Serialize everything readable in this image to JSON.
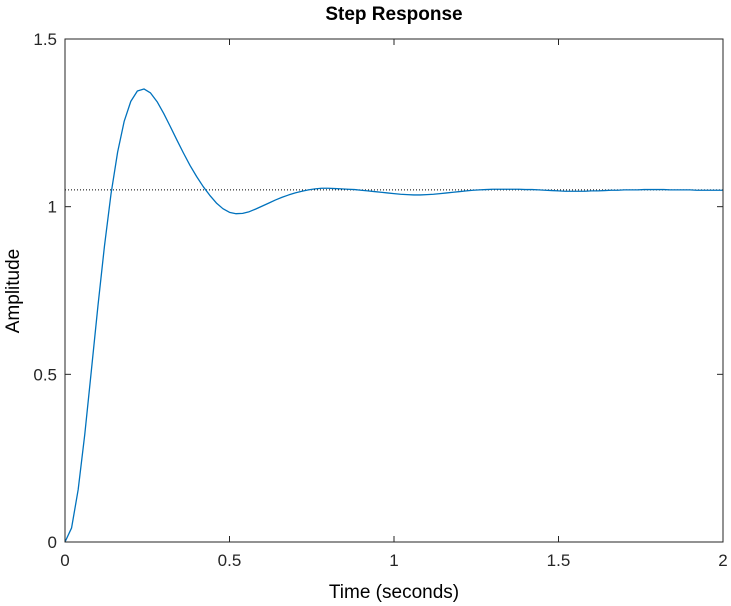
{
  "chart_data": {
    "type": "line",
    "title": "Step Response",
    "xlabel": "Time (seconds)",
    "ylabel": "Amplitude",
    "xlim": [
      0,
      2
    ],
    "ylim": [
      0,
      1.5
    ],
    "xticks": [
      0,
      0.5,
      1,
      1.5,
      2
    ],
    "xtick_labels": [
      "0",
      "0.5",
      "1",
      "1.5",
      "2"
    ],
    "yticks": [
      0,
      0.5,
      1,
      1.5
    ],
    "ytick_labels": [
      "0",
      "0.5",
      "1",
      "1.5"
    ],
    "grid": false,
    "steady_state": 1.05,
    "series": [
      {
        "color": "#0072BD",
        "x": [
          0,
          0.02,
          0.04,
          0.06,
          0.08,
          0.1,
          0.12,
          0.14,
          0.16,
          0.18,
          0.2,
          0.22,
          0.24,
          0.26,
          0.28,
          0.3,
          0.32,
          0.34,
          0.36,
          0.38,
          0.4,
          0.42,
          0.44,
          0.46,
          0.48,
          0.5,
          0.52,
          0.54,
          0.56,
          0.58,
          0.6,
          0.62,
          0.64,
          0.66,
          0.68,
          0.7,
          0.72,
          0.74,
          0.76,
          0.78,
          0.8,
          0.82,
          0.84,
          0.86,
          0.88,
          0.9,
          0.92,
          0.94,
          0.96,
          0.98,
          1.0,
          1.02,
          1.04,
          1.06,
          1.08,
          1.1,
          1.12,
          1.14,
          1.16,
          1.18,
          1.2,
          1.22,
          1.24,
          1.26,
          1.28,
          1.3,
          1.32,
          1.34,
          1.36,
          1.38,
          1.4,
          1.42,
          1.44,
          1.46,
          1.48,
          1.5,
          1.52,
          1.54,
          1.56,
          1.58,
          1.6,
          1.62,
          1.64,
          1.66,
          1.68,
          1.7,
          1.72,
          1.74,
          1.76,
          1.78,
          1.8,
          1.82,
          1.84,
          1.86,
          1.88,
          1.9,
          1.92,
          1.94,
          1.96,
          1.98,
          2.0
        ],
        "y": [
          0,
          0.042,
          0.156,
          0.32,
          0.51,
          0.703,
          0.883,
          1.039,
          1.163,
          1.255,
          1.314,
          1.345,
          1.351,
          1.339,
          1.313,
          1.278,
          1.239,
          1.199,
          1.16,
          1.123,
          1.09,
          1.06,
          1.034,
          1.011,
          0.994,
          0.983,
          0.979,
          0.98,
          0.985,
          0.993,
          1.002,
          1.011,
          1.02,
          1.028,
          1.035,
          1.041,
          1.046,
          1.05,
          1.053,
          1.055,
          1.055,
          1.054,
          1.053,
          1.052,
          1.051,
          1.049,
          1.047,
          1.045,
          1.043,
          1.041,
          1.039,
          1.037,
          1.036,
          1.035,
          1.035,
          1.036,
          1.037,
          1.039,
          1.041,
          1.043,
          1.045,
          1.047,
          1.049,
          1.05,
          1.051,
          1.052,
          1.052,
          1.052,
          1.052,
          1.052,
          1.051,
          1.051,
          1.05,
          1.049,
          1.048,
          1.047,
          1.046,
          1.046,
          1.046,
          1.046,
          1.047,
          1.047,
          1.048,
          1.049,
          1.049,
          1.05,
          1.05,
          1.05,
          1.051,
          1.051,
          1.051,
          1.051,
          1.05,
          1.05,
          1.05,
          1.05,
          1.049,
          1.049,
          1.049,
          1.049,
          1.049
        ]
      }
    ]
  }
}
